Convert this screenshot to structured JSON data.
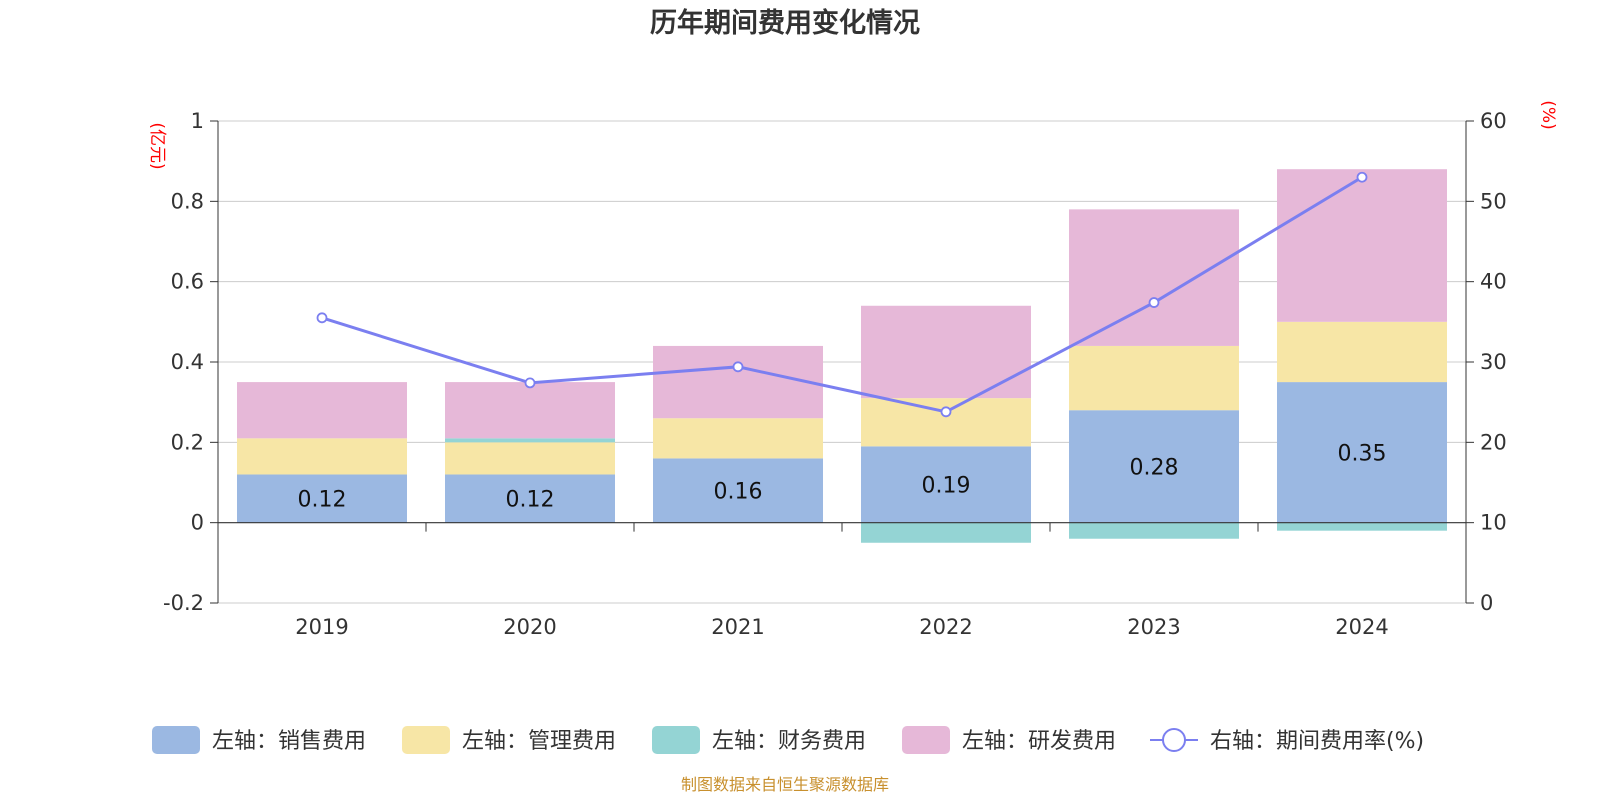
{
  "chart_data": {
    "type": "bar",
    "title": "历年期间费用变化情况",
    "categories": [
      "2019",
      "2020",
      "2021",
      "2022",
      "2023",
      "2024"
    ],
    "left_axis": {
      "unit": "(亿元)",
      "ylim": [
        -0.2,
        1
      ],
      "ticks": [
        "-0.2",
        "0",
        "0.2",
        "0.4",
        "0.6",
        "0.8",
        "1"
      ]
    },
    "right_axis": {
      "unit": "(%)",
      "ylim": [
        0,
        60
      ],
      "ticks": [
        "0",
        "10",
        "20",
        "30",
        "40",
        "50",
        "60"
      ]
    },
    "stacked": true,
    "series": [
      {
        "name": "左轴：销售费用",
        "type": "bar",
        "color": "#9bb8e2",
        "values": [
          0.12,
          0.12,
          0.16,
          0.19,
          0.28,
          0.35
        ],
        "labels": [
          "0.12",
          "0.12",
          "0.16",
          "0.19",
          "0.28",
          "0.35"
        ]
      },
      {
        "name": "左轴：管理费用",
        "type": "bar",
        "color": "#f7e6a6",
        "values": [
          0.09,
          0.08,
          0.1,
          0.12,
          0.16,
          0.15
        ]
      },
      {
        "name": "左轴：财务费用",
        "type": "bar",
        "color": "#94d4d4",
        "values": [
          0.0,
          0.01,
          0.0,
          -0.05,
          -0.04,
          -0.02
        ]
      },
      {
        "name": "左轴：研发费用",
        "type": "bar",
        "color": "#e6b8d8",
        "values": [
          0.14,
          0.14,
          0.18,
          0.23,
          0.34,
          0.38
        ]
      },
      {
        "name": "右轴：期间费用率(%)",
        "type": "line",
        "axis": "right",
        "color": "#7b7ff0",
        "values": [
          35.5,
          27.4,
          29.4,
          23.8,
          37.4,
          53.0
        ]
      }
    ],
    "grid": true,
    "legend_position": "bottom"
  },
  "footer": {
    "source": "制图数据来自恒生聚源数据库"
  }
}
